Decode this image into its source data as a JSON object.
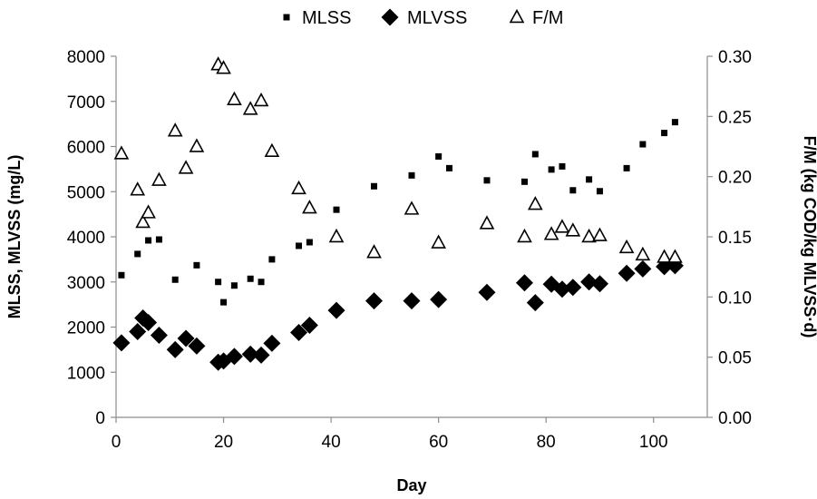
{
  "chart_data": {
    "type": "scatter",
    "title": "",
    "xlabel": "Day",
    "ylabel_left": "MLSS, MLVSS (mg/L)",
    "ylabel_right": "F/M (kg COD/kg MLVSS·d)",
    "xlim": [
      0,
      110
    ],
    "ylim_left": [
      0,
      8000
    ],
    "ylim_right": [
      0,
      0.3
    ],
    "x_ticks": [
      "0",
      "20",
      "40",
      "60",
      "80",
      "100"
    ],
    "y_left_ticks": [
      "0",
      "1000",
      "2000",
      "3000",
      "4000",
      "5000",
      "6000",
      "7000",
      "8000"
    ],
    "y_right_ticks": [
      "0.00",
      "0.05",
      "0.10",
      "0.15",
      "0.20",
      "0.25",
      "0.30"
    ],
    "grid": false,
    "legend_position": "top-center",
    "series": [
      {
        "name": "MLSS",
        "marker": "square",
        "axis": "left",
        "color": "#000000",
        "points": [
          [
            1,
            3150
          ],
          [
            4,
            3620
          ],
          [
            6,
            3920
          ],
          [
            8,
            3940
          ],
          [
            11,
            3050
          ],
          [
            15,
            3370
          ],
          [
            19,
            3000
          ],
          [
            20,
            2550
          ],
          [
            22,
            2920
          ],
          [
            25,
            3070
          ],
          [
            27,
            3000
          ],
          [
            29,
            3500
          ],
          [
            34,
            3800
          ],
          [
            36,
            3880
          ],
          [
            41,
            4600
          ],
          [
            48,
            5120
          ],
          [
            55,
            5360
          ],
          [
            60,
            5780
          ],
          [
            62,
            5520
          ],
          [
            69,
            5250
          ],
          [
            76,
            5220
          ],
          [
            78,
            5830
          ],
          [
            81,
            5490
          ],
          [
            83,
            5560
          ],
          [
            85,
            5030
          ],
          [
            88,
            5270
          ],
          [
            90,
            5010
          ],
          [
            95,
            5520
          ],
          [
            98,
            6050
          ],
          [
            102,
            6300
          ],
          [
            104,
            6540
          ]
        ]
      },
      {
        "name": "MLVSS",
        "marker": "diamond",
        "axis": "left",
        "color": "#000000",
        "points": [
          [
            1,
            1650
          ],
          [
            4,
            1900
          ],
          [
            5,
            2200
          ],
          [
            6,
            2100
          ],
          [
            8,
            1820
          ],
          [
            11,
            1500
          ],
          [
            13,
            1750
          ],
          [
            15,
            1580
          ],
          [
            19,
            1220
          ],
          [
            20,
            1250
          ],
          [
            22,
            1350
          ],
          [
            25,
            1400
          ],
          [
            27,
            1380
          ],
          [
            29,
            1640
          ],
          [
            34,
            1880
          ],
          [
            36,
            2040
          ],
          [
            41,
            2370
          ],
          [
            48,
            2580
          ],
          [
            55,
            2580
          ],
          [
            60,
            2610
          ],
          [
            69,
            2770
          ],
          [
            76,
            2980
          ],
          [
            78,
            2540
          ],
          [
            81,
            2950
          ],
          [
            83,
            2840
          ],
          [
            85,
            2880
          ],
          [
            88,
            3000
          ],
          [
            90,
            2960
          ],
          [
            95,
            3190
          ],
          [
            98,
            3290
          ],
          [
            102,
            3340
          ],
          [
            104,
            3360
          ]
        ]
      },
      {
        "name": "F/M",
        "marker": "triangle-open",
        "axis": "right",
        "color": "#000000",
        "points": [
          [
            1,
            0.219
          ],
          [
            4,
            0.189
          ],
          [
            5,
            0.162
          ],
          [
            6,
            0.17
          ],
          [
            8,
            0.197
          ],
          [
            11,
            0.238
          ],
          [
            13,
            0.207
          ],
          [
            15,
            0.225
          ],
          [
            19,
            0.293
          ],
          [
            20,
            0.29
          ],
          [
            22,
            0.264
          ],
          [
            25,
            0.256
          ],
          [
            27,
            0.263
          ],
          [
            29,
            0.221
          ],
          [
            34,
            0.19
          ],
          [
            36,
            0.174
          ],
          [
            41,
            0.15
          ],
          [
            48,
            0.137
          ],
          [
            55,
            0.173
          ],
          [
            60,
            0.145
          ],
          [
            69,
            0.161
          ],
          [
            76,
            0.15
          ],
          [
            78,
            0.177
          ],
          [
            81,
            0.152
          ],
          [
            83,
            0.158
          ],
          [
            85,
            0.155
          ],
          [
            88,
            0.15
          ],
          [
            90,
            0.151
          ],
          [
            95,
            0.141
          ],
          [
            98,
            0.135
          ],
          [
            102,
            0.133
          ],
          [
            104,
            0.133
          ]
        ]
      }
    ]
  }
}
